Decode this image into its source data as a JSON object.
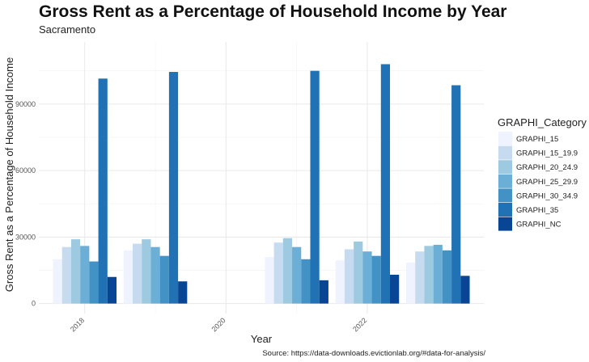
{
  "chart_data": {
    "type": "bar",
    "title": "Gross Rent as a Percentage of Household Income by Year",
    "subtitle": "Sacramento",
    "xlabel": "Year",
    "ylabel": "Gross Rent as a Percentage of Household Income",
    "caption": "Source: https://data-downloads.evictionlab.org/#data-for-analysis/",
    "legend_title": "GRAPHI_Category",
    "legend_position": "right",
    "grid": true,
    "x": [
      2018,
      2019,
      2021,
      2022,
      2023
    ],
    "xlim": [
      2017.35,
      2023.65
    ],
    "x_ticks": [
      2018,
      2020,
      2022
    ],
    "y_ticks": [
      0,
      30000,
      60000,
      90000
    ],
    "y_tick_labels": [
      "0",
      "30000",
      "60000",
      "90000"
    ],
    "ylim": [
      -4500,
      118000
    ],
    "series": [
      {
        "name": "GRAPHI_15",
        "color": "#eff3ff",
        "values": [
          20000,
          24000,
          21000,
          19500,
          18500
        ]
      },
      {
        "name": "GRAPHI_15_19.9",
        "color": "#c6dbef",
        "values": [
          25500,
          27000,
          27500,
          24500,
          23500
        ]
      },
      {
        "name": "GRAPHI_20_24.9",
        "color": "#9ecae1",
        "values": [
          29000,
          29000,
          29500,
          28000,
          26000
        ]
      },
      {
        "name": "GRAPHI_25_29.9",
        "color": "#6baed6",
        "values": [
          26000,
          25500,
          25500,
          23500,
          26500
        ]
      },
      {
        "name": "GRAPHI_30_34.9",
        "color": "#4292c6",
        "values": [
          19000,
          21500,
          20000,
          21500,
          24000
        ]
      },
      {
        "name": "GRAPHI_35",
        "color": "#2171b5",
        "values": [
          101500,
          104500,
          105000,
          108000,
          98500
        ]
      },
      {
        "name": "GRAPHI_NC",
        "color": "#084594",
        "values": [
          12000,
          10000,
          10500,
          13000,
          12500
        ]
      }
    ]
  }
}
